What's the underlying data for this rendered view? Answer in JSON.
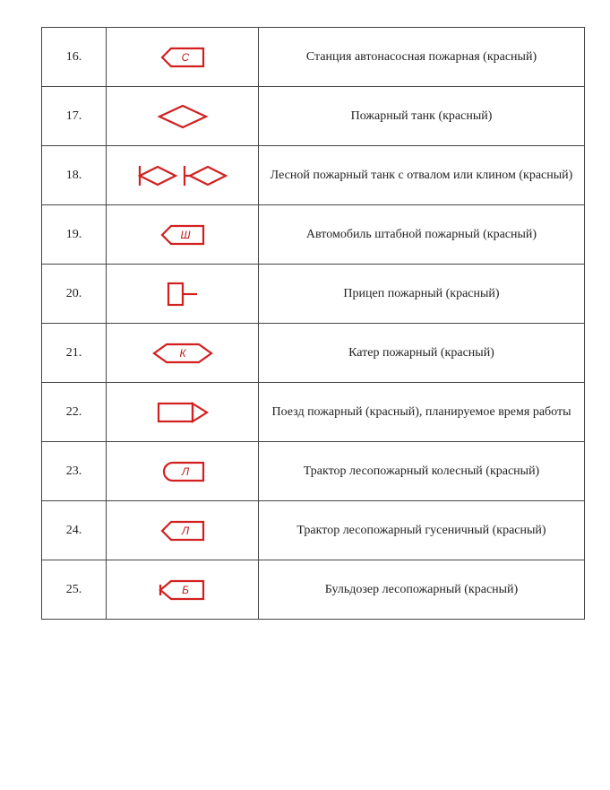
{
  "symbol_color": "#d22020",
  "text_color": "#222222",
  "border_color": "#444444",
  "font_family": "Times New Roman",
  "font_size_pt": 11,
  "rows": [
    {
      "num": "16.",
      "desc": "Станция автонасосная пожарная (красный)",
      "symbol": {
        "type": "flag-rect",
        "letter": "С",
        "color": "#d22020"
      }
    },
    {
      "num": "17.",
      "desc": "Пожарный танк (красный)",
      "symbol": {
        "type": "diamond",
        "color": "#d22020"
      }
    },
    {
      "num": "18.",
      "desc": "Лесной пожарный танк с отвалом или клином (красный)",
      "symbol": {
        "type": "diamond-blade-pair",
        "color": "#d22020"
      }
    },
    {
      "num": "19.",
      "desc": "Автомобиль штабной пожарный (красный)",
      "symbol": {
        "type": "flag-rect",
        "letter": "Ш",
        "color": "#d22020"
      }
    },
    {
      "num": "20.",
      "desc": "Прицеп пожарный (красный)",
      "symbol": {
        "type": "trailer",
        "color": "#d22020"
      }
    },
    {
      "num": "21.",
      "desc": "Катер пожарный (красный)",
      "symbol": {
        "type": "hex-long",
        "letter": "К",
        "color": "#d22020"
      }
    },
    {
      "num": "22.",
      "desc": "Поезд пожарный (красный), планируемое время работы",
      "symbol": {
        "type": "train",
        "color": "#d22020"
      }
    },
    {
      "num": "23.",
      "desc": "Трактор лесопожарный колесный (красный)",
      "symbol": {
        "type": "tractor-round",
        "letter": "Л",
        "color": "#d22020"
      }
    },
    {
      "num": "24.",
      "desc": "Трактор лесопожарный  гусеничный (красный)",
      "symbol": {
        "type": "flag-rect",
        "letter": "Л",
        "color": "#d22020"
      }
    },
    {
      "num": "25.",
      "desc": "Бульдозер лесопожарный (красный)",
      "symbol": {
        "type": "flag-rect-blade",
        "letter": "Б",
        "color": "#d22020"
      }
    }
  ]
}
